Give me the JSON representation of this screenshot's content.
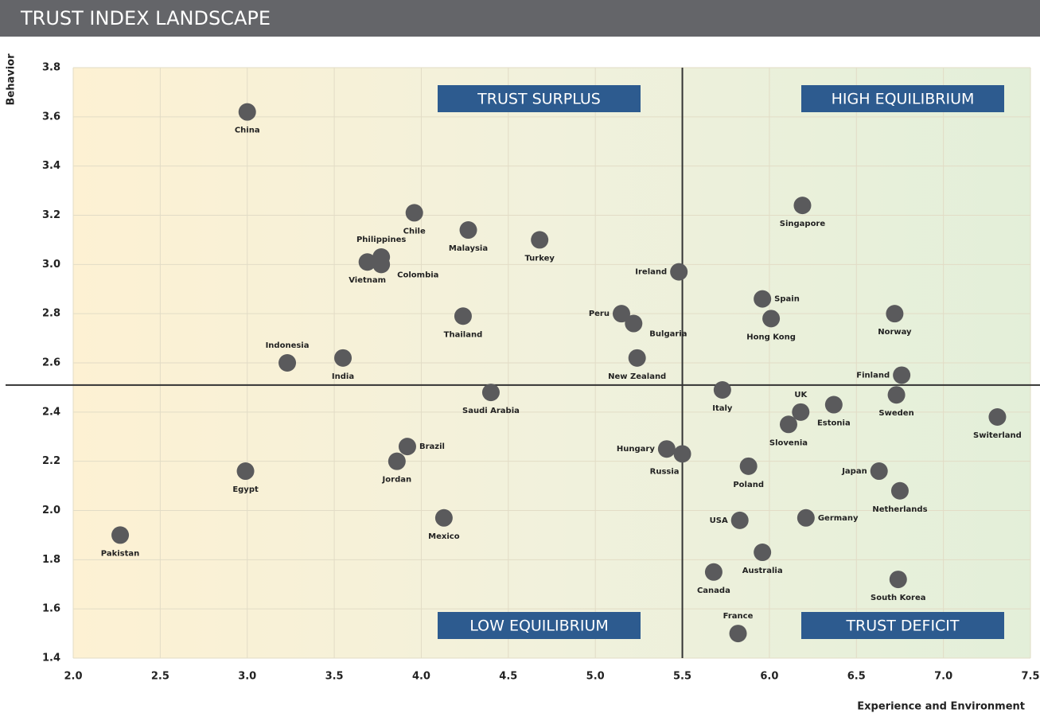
{
  "chart_data": {
    "type": "scatter",
    "title": "TRUST INDEX LANDSCAPE",
    "x_label": "Experience and Environment",
    "y_label": "Behavior",
    "color": "#5a5a5c",
    "labels": [
      "China",
      "Chile",
      "Malaysia",
      "Turkey",
      "Philippines",
      "Colombia",
      "Vietnam",
      "Ireland",
      "Singapore",
      "Spain",
      "Hong Kong",
      "Norway",
      "Peru",
      "Bulgaria",
      "Thailand",
      "New Zealand",
      "Indonesia",
      "India",
      "Finland",
      "Sweden",
      "Saudi Arabia",
      "Italy",
      "UK",
      "Estonia",
      "Slovenia",
      "Switerland",
      "Brazil",
      "Jordan",
      "Egypt",
      "Hungary",
      "Russia",
      "Poland",
      "Japan",
      "Netherlands",
      "Mexico",
      "USA",
      "Germany",
      "Pakistan",
      "Australia",
      "Canada",
      "South Korea",
      "France"
    ],
    "x": [
      3.0,
      3.96,
      4.27,
      4.68,
      3.77,
      3.77,
      3.69,
      5.48,
      6.19,
      5.96,
      6.01,
      6.72,
      5.15,
      5.22,
      4.24,
      5.24,
      3.23,
      3.55,
      6.76,
      6.73,
      4.4,
      5.73,
      6.18,
      6.37,
      6.11,
      7.31,
      3.92,
      3.86,
      2.99,
      5.41,
      5.5,
      5.88,
      6.63,
      6.75,
      4.13,
      5.83,
      6.21,
      2.27,
      5.96,
      5.68,
      6.74,
      5.82
    ],
    "values": [
      3.62,
      3.21,
      3.14,
      3.1,
      3.03,
      3.0,
      3.01,
      2.97,
      3.24,
      2.86,
      2.78,
      2.8,
      2.8,
      2.76,
      2.79,
      2.62,
      2.6,
      2.62,
      2.55,
      2.47,
      2.48,
      2.49,
      2.4,
      2.43,
      2.35,
      2.38,
      2.26,
      2.2,
      2.16,
      2.25,
      2.23,
      2.18,
      2.16,
      2.08,
      1.97,
      1.96,
      1.97,
      1.9,
      1.83,
      1.75,
      1.72,
      1.5
    ],
    "xlim": [
      2.0,
      7.5
    ],
    "ylim": [
      1.4,
      3.8
    ],
    "xticks": [
      {
        "value": 2,
        "label": "2.0"
      },
      2.5,
      {
        "value": 3,
        "label": "3.0"
      },
      3.5,
      {
        "value": 4,
        "label": "4.0"
      },
      4.5,
      {
        "value": 5,
        "label": "5.0"
      },
      5.5,
      {
        "value": 6,
        "label": "6.0"
      },
      6.5,
      {
        "value": 7,
        "label": "7.0"
      },
      7.5
    ],
    "yticks": [
      1.4,
      1.6,
      1.8,
      {
        "value": 2,
        "label": "2.0"
      },
      2.2,
      2.4,
      2.6,
      2.8,
      {
        "value": 3,
        "label": "3.0"
      },
      3.2,
      3.4,
      3.6,
      3.8
    ],
    "grid": true,
    "reference_x": 5.5,
    "reference_y": 2.51,
    "quadrants": {
      "top_left": "TRUST SURPLUS",
      "top_right": "HIGH EQUILIBRIUM",
      "bottom_left": "LOW EQUILIBRIUM",
      "bottom_right": "TRUST DEFICIT"
    },
    "quadrant_color": "#2d5b8f"
  }
}
